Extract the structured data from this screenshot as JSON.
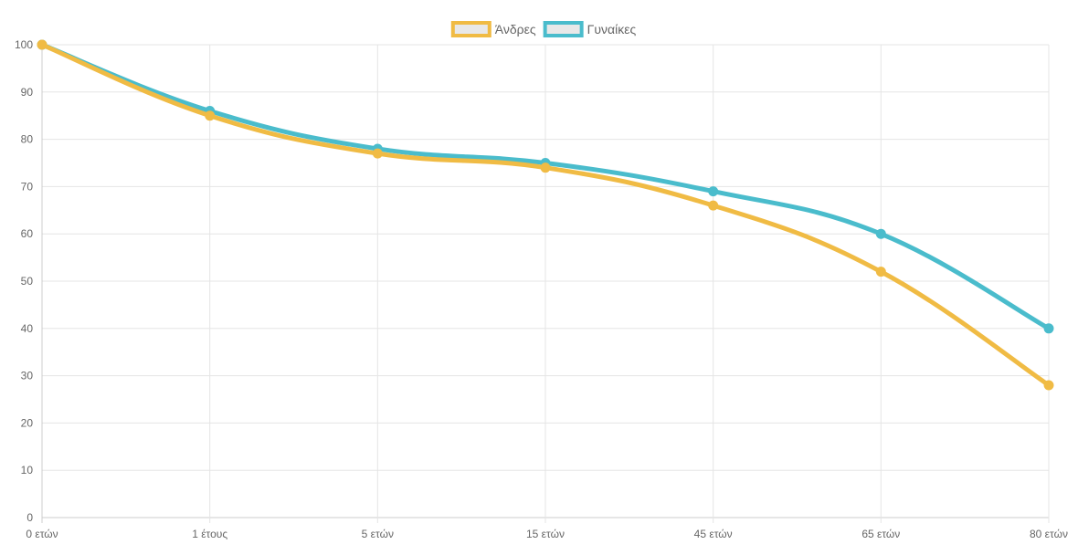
{
  "chart_data": {
    "type": "line",
    "categories": [
      "0 ετών",
      "1 έτους",
      "5 ετών",
      "15 ετών",
      "45 ετών",
      "65 ετών",
      "80 ετών"
    ],
    "series": [
      {
        "name": "Άνδρες",
        "values": [
          100,
          85,
          77,
          74,
          66,
          52,
          28
        ],
        "color": "#f0bb44"
      },
      {
        "name": "Γυναίκες",
        "values": [
          100,
          86,
          78,
          75,
          69,
          60,
          40
        ],
        "color": "#4abccc"
      }
    ],
    "title": "",
    "xlabel": "",
    "ylabel": "",
    "ylim": [
      0,
      100
    ],
    "yticks": [
      0,
      10,
      20,
      30,
      40,
      50,
      60,
      70,
      80,
      90,
      100
    ],
    "grid": true,
    "legend_position": "top-center",
    "legend_fill_color": "#e8e8e8",
    "grid_color": "#e5e5e5"
  }
}
